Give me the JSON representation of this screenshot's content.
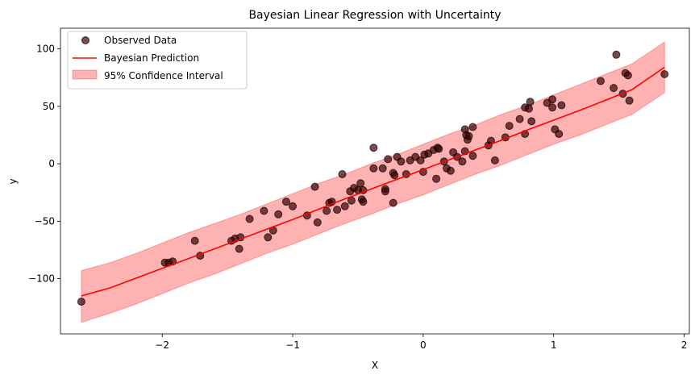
{
  "chart_data": {
    "type": "scatter",
    "title": "Bayesian Linear Regression with Uncertainty",
    "xlabel": "X",
    "ylabel": "y",
    "xlim": [
      -2.78,
      2.04
    ],
    "ylim": [
      -148,
      118
    ],
    "xticks": [
      -2,
      -1,
      0,
      1,
      2
    ],
    "xtick_labels": [
      "−2",
      "−1",
      "0",
      "1",
      "2"
    ],
    "yticks": [
      -100,
      -50,
      0,
      50,
      100
    ],
    "ytick_labels": [
      "−100",
      "−50",
      "0",
      "50",
      "100"
    ],
    "grid": false,
    "legend_position": "top-left",
    "colors": {
      "points": "#3d0000",
      "point_edge": "#000000",
      "line": "#ff0000",
      "band": "#ff9999"
    },
    "series": [
      {
        "name": "Observed Data",
        "kind": "scatter",
        "points": [
          [
            -2.62,
            -120
          ],
          [
            -1.98,
            -86
          ],
          [
            -1.95,
            -86
          ],
          [
            -1.92,
            -85
          ],
          [
            -1.75,
            -67
          ],
          [
            -1.71,
            -80
          ],
          [
            -1.47,
            -67
          ],
          [
            -1.44,
            -65
          ],
          [
            -1.41,
            -74
          ],
          [
            -1.4,
            -64
          ],
          [
            -1.33,
            -48
          ],
          [
            -1.22,
            -41
          ],
          [
            -1.19,
            -64
          ],
          [
            -1.15,
            -58
          ],
          [
            -1.11,
            -44
          ],
          [
            -1.05,
            -33
          ],
          [
            -1.0,
            -37
          ],
          [
            -0.89,
            -45
          ],
          [
            -0.83,
            -20
          ],
          [
            -0.81,
            -51
          ],
          [
            -0.74,
            -41
          ],
          [
            -0.72,
            -34
          ],
          [
            -0.7,
            -33
          ],
          [
            -0.66,
            -40
          ],
          [
            -0.62,
            -9
          ],
          [
            -0.6,
            -37
          ],
          [
            -0.56,
            -24
          ],
          [
            -0.55,
            -32
          ],
          [
            -0.53,
            -21
          ],
          [
            -0.5,
            -23
          ],
          [
            -0.48,
            -17
          ],
          [
            -0.47,
            -31
          ],
          [
            -0.46,
            -33
          ],
          [
            -0.46,
            -23
          ],
          [
            -0.38,
            14
          ],
          [
            -0.38,
            -4
          ],
          [
            -0.31,
            -4
          ],
          [
            -0.29,
            -22
          ],
          [
            -0.29,
            -24
          ],
          [
            -0.27,
            4
          ],
          [
            -0.23,
            -8
          ],
          [
            -0.23,
            -34
          ],
          [
            -0.22,
            -10
          ],
          [
            -0.2,
            6
          ],
          [
            -0.17,
            2
          ],
          [
            -0.13,
            -9
          ],
          [
            -0.1,
            3
          ],
          [
            -0.06,
            6
          ],
          [
            -0.02,
            3
          ],
          [
            0.0,
            -7
          ],
          [
            0.01,
            8
          ],
          [
            0.04,
            9
          ],
          [
            0.08,
            12
          ],
          [
            0.11,
            14
          ],
          [
            0.1,
            -13
          ],
          [
            0.12,
            13
          ],
          [
            0.16,
            2
          ],
          [
            0.18,
            -4
          ],
          [
            0.21,
            -6
          ],
          [
            0.23,
            10
          ],
          [
            0.26,
            6
          ],
          [
            0.3,
            2
          ],
          [
            0.32,
            30
          ],
          [
            0.33,
            25
          ],
          [
            0.34,
            21
          ],
          [
            0.32,
            11
          ],
          [
            0.35,
            24
          ],
          [
            0.38,
            32
          ],
          [
            0.38,
            7
          ],
          [
            0.5,
            16
          ],
          [
            0.52,
            20
          ],
          [
            0.55,
            3
          ],
          [
            0.63,
            23
          ],
          [
            0.66,
            33
          ],
          [
            0.74,
            39
          ],
          [
            0.78,
            26
          ],
          [
            0.78,
            49
          ],
          [
            0.81,
            48
          ],
          [
            0.82,
            54
          ],
          [
            0.83,
            37
          ],
          [
            0.95,
            53
          ],
          [
            0.99,
            49
          ],
          [
            0.99,
            56
          ],
          [
            1.01,
            30
          ],
          [
            1.04,
            26
          ],
          [
            1.06,
            51
          ],
          [
            1.36,
            72
          ],
          [
            1.46,
            66
          ],
          [
            1.48,
            95
          ],
          [
            1.53,
            61
          ],
          [
            1.55,
            79
          ],
          [
            1.57,
            77
          ],
          [
            1.58,
            55
          ],
          [
            1.85,
            78
          ]
        ]
      },
      {
        "name": "Bayesian Prediction",
        "kind": "line",
        "x": [
          -2.62,
          -2.4,
          -2.2,
          -2.0,
          -1.8,
          -1.6,
          -1.4,
          -1.2,
          -1.0,
          -0.8,
          -0.6,
          -0.4,
          -0.2,
          0.0,
          0.2,
          0.4,
          0.6,
          0.8,
          1.0,
          1.2,
          1.4,
          1.6,
          1.85
        ],
        "y": [
          -115.0,
          -108.0,
          -99.5,
          -91.0,
          -82.5,
          -74.0,
          -65.5,
          -57.0,
          -48.5,
          -39.5,
          -30.5,
          -22.0,
          -13.5,
          -5.0,
          3.5,
          12.0,
          20.5,
          29.5,
          38.0,
          46.5,
          55.5,
          64.5,
          84.0
        ]
      },
      {
        "name": "95% Confidence Interval",
        "kind": "band",
        "x": [
          -2.62,
          -2.4,
          -2.2,
          -2.0,
          -1.8,
          -1.6,
          -1.4,
          -1.2,
          -1.0,
          -0.8,
          -0.6,
          -0.4,
          -0.2,
          0.0,
          0.2,
          0.4,
          0.6,
          0.8,
          1.0,
          1.2,
          1.4,
          1.6,
          1.85
        ],
        "lower": [
          -138,
          -130,
          -122,
          -113,
          -104,
          -96,
          -87,
          -78,
          -70,
          -61,
          -52,
          -44,
          -35,
          -27,
          -18,
          -9,
          -1,
          8,
          17,
          25,
          34,
          43,
          62
        ],
        "upper": [
          -93,
          -86,
          -78,
          -69,
          -60,
          -52,
          -44,
          -35,
          -26,
          -17,
          -9,
          0,
          8,
          17,
          26,
          34,
          43,
          51,
          60,
          69,
          78,
          87,
          106
        ]
      }
    ]
  }
}
